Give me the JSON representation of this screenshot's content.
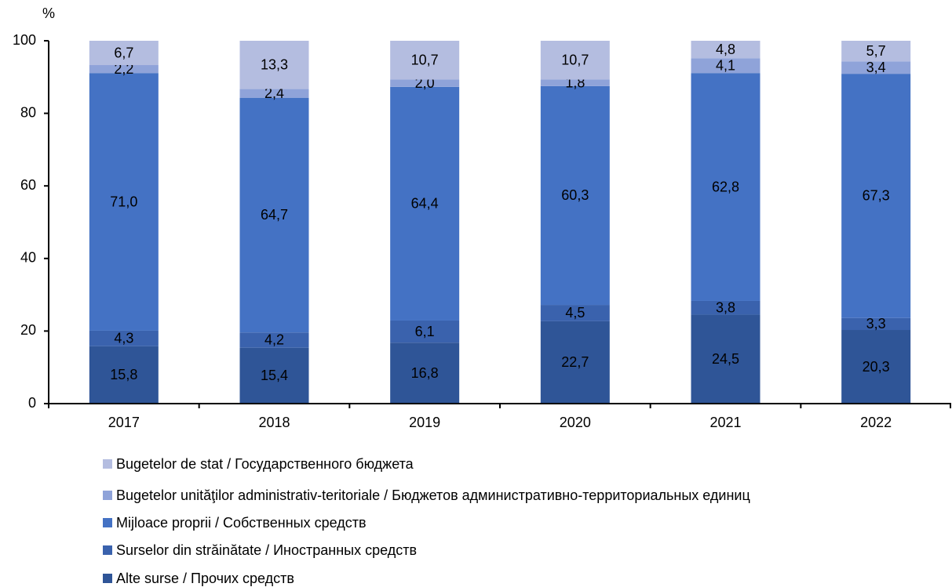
{
  "chart_data": {
    "type": "stacked_bar",
    "ylabel": "%",
    "categories": [
      "2017",
      "2018",
      "2019",
      "2020",
      "2021",
      "2022"
    ],
    "series": [
      {
        "name": "Bugetelor de stat / Государственного бюджета",
        "color": "#b4bde0",
        "values": [
          6.7,
          13.3,
          10.7,
          10.7,
          4.8,
          5.7
        ],
        "value_labels": [
          "6,7",
          "13,3",
          "10,7",
          "10,7",
          "4,8",
          "5,7"
        ]
      },
      {
        "name": "Bugetelor unităţilor administrativ-teritoriale / Бюджетов административно-территориальных единиц",
        "color": "#8fa3d9",
        "values": [
          2.2,
          2.4,
          2.0,
          1.8,
          4.1,
          3.4
        ],
        "value_labels": [
          "2,2",
          "2,4",
          "2,0",
          "1,8",
          "4,1",
          "3,4"
        ]
      },
      {
        "name": "Mijloace proprii / Собственных средств",
        "color": "#4472c4",
        "values": [
          71.0,
          64.7,
          64.4,
          60.3,
          62.8,
          67.3
        ],
        "value_labels": [
          "71,0",
          "64,7",
          "64,4",
          "60,3",
          "62,8",
          "67,3"
        ]
      },
      {
        "name": "Surselor din străinătate / Иностранных средств",
        "color": "#3a62ad",
        "values": [
          4.3,
          4.2,
          6.1,
          4.5,
          3.8,
          3.3
        ],
        "value_labels": [
          "4,3",
          "4,2",
          "6,1",
          "4,5",
          "3,8",
          "3,3"
        ]
      },
      {
        "name": "Alte surse / Прочих средств",
        "color": "#2f5597",
        "values": [
          15.8,
          15.4,
          16.8,
          22.7,
          24.5,
          20.3
        ],
        "value_labels": [
          "15,8",
          "15,4",
          "16,8",
          "22,7",
          "24,5",
          "20,3"
        ]
      }
    ],
    "ylim": [
      0,
      100
    ],
    "yticks": [
      0,
      20,
      40,
      60,
      80,
      100
    ],
    "grid": false,
    "legend": "bottom"
  }
}
